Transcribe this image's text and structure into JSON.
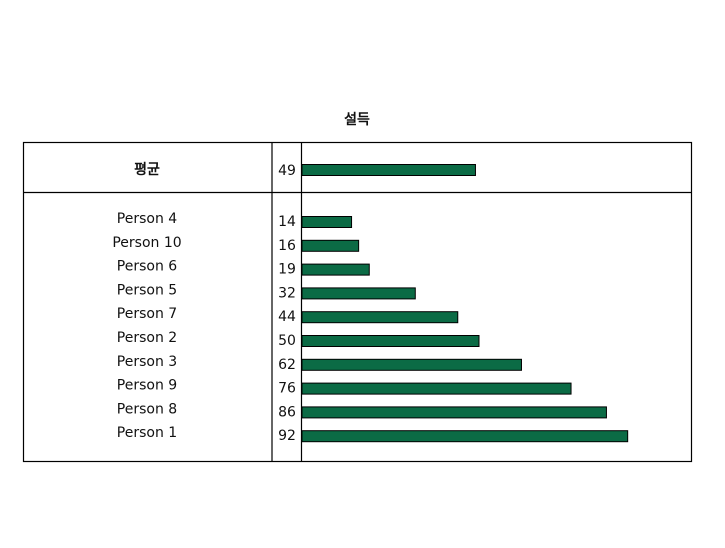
{
  "chart_data": {
    "type": "bar",
    "title": "설득",
    "average": {
      "label": "평균",
      "value": 49
    },
    "categories": [
      "Person 4",
      "Person 10",
      "Person 6",
      "Person 5",
      "Person 7",
      "Person 2",
      "Person 3",
      "Person 9",
      "Person 8",
      "Person 1"
    ],
    "values": [
      14,
      16,
      19,
      32,
      44,
      50,
      62,
      76,
      86,
      92
    ],
    "color": "#0b6b45"
  }
}
